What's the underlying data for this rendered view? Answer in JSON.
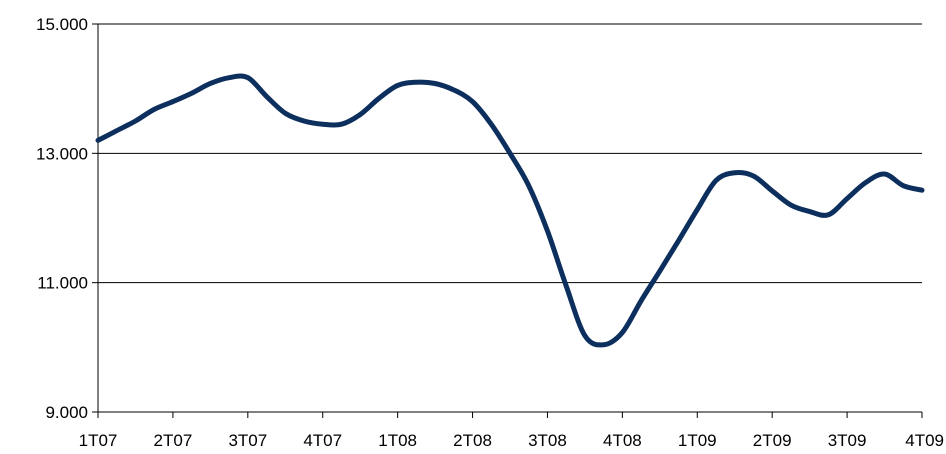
{
  "chart_data": {
    "type": "line",
    "title": "",
    "xlabel": "",
    "ylabel": "",
    "categories": [
      "1T07",
      "2T07",
      "3T07",
      "4T07",
      "1T08",
      "2T08",
      "3T08",
      "4T08",
      "1T09",
      "2T09",
      "3T09",
      "4T09"
    ],
    "ylim": [
      9000,
      15000
    ],
    "yticks": [
      9000,
      11000,
      13000,
      15000
    ],
    "ytick_labels": [
      "9.000",
      "11.000",
      "13.000",
      "15.000"
    ],
    "grid": "horizontal",
    "legend": "none",
    "series": [
      {
        "x": [
          0,
          0.25,
          0.5,
          0.75,
          1,
          1.25,
          1.5,
          1.75,
          2,
          2.25,
          2.5,
          2.75,
          3,
          3.25,
          3.5,
          3.75,
          4,
          4.25,
          4.5,
          4.75,
          5,
          5.25,
          5.5,
          5.75,
          6,
          6.25,
          6.5,
          6.75,
          7,
          7.25,
          7.5,
          7.75,
          8,
          8.25,
          8.5,
          8.75,
          9,
          9.25,
          9.5,
          9.75,
          10,
          10.25,
          10.5,
          10.75,
          11
        ],
        "values": [
          13200,
          13350,
          13500,
          13680,
          13800,
          13930,
          14080,
          14170,
          14170,
          13880,
          13620,
          13500,
          13450,
          13450,
          13600,
          13850,
          14050,
          14100,
          14080,
          13980,
          13800,
          13450,
          13000,
          12500,
          11800,
          10950,
          10180,
          10040,
          10230,
          10720,
          11180,
          11650,
          12130,
          12580,
          12700,
          12650,
          12420,
          12200,
          12100,
          12050,
          12300,
          12550,
          12680,
          12500,
          12430
        ],
        "color": "#0d2f5e"
      }
    ]
  }
}
